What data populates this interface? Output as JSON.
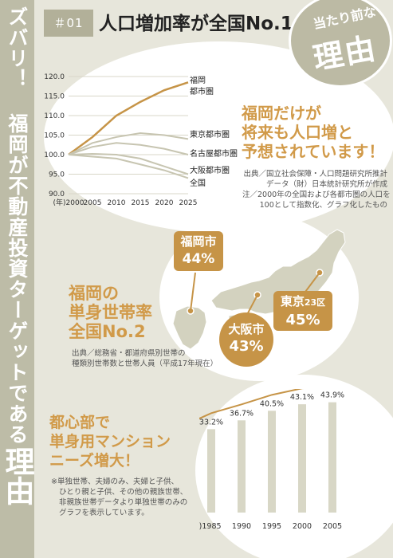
{
  "side": {
    "title": "ズバリ！ 福岡が不動産投資ターゲットである",
    "reason": "理由"
  },
  "header": {
    "number": "＃01",
    "title": "人口増加率が全国No.1",
    "badge_sub": "当たり前な",
    "badge_main": "理由"
  },
  "colors": {
    "accent": "#c69447",
    "accent_text": "#d19a49",
    "band": "#bdbca7",
    "grid": "#d9d7c8",
    "bar": "#d8d7c6",
    "background": "#e7e6db"
  },
  "section1": {
    "headline": [
      "福岡だけが",
      "将来も人口増と",
      "予想されています！"
    ],
    "source": [
      "出典／国立社会保障・人口問題研究所推計",
      "データ（財）日本統計研究所が作成",
      "注／2000年の全国および各都市圏の人口を",
      "100として指数化、グラフ化したもの"
    ]
  },
  "section2": {
    "headline": [
      "福岡の",
      "単身世帯率",
      "全国No.2"
    ],
    "source": [
      "出典／総務省・都道府県別世帯の",
      "種類別世帯数と世帯人員（平成17年現在）"
    ],
    "tags": {
      "fukuoka_city": "福岡市",
      "fukuoka_rate": "44%",
      "osaka_city": "大阪市",
      "osaka_rate": "43%",
      "tokyo_city": "東京",
      "tokyo_suffix": "23区",
      "tokyo_rate": "45%"
    }
  },
  "section3": {
    "headline": [
      "都心部で",
      "単身用マンション",
      "ニーズ増大！"
    ],
    "note": [
      "※単独世帯、夫婦のみ、夫婦と子供、",
      "ひとり親と子供、その他の親族世帯、",
      "非親族世帯データより単独世帯のみの",
      "グラフを表示しています。"
    ]
  },
  "chart_data": [
    {
      "type": "line",
      "x": [
        2000,
        2005,
        2010,
        2015,
        2020,
        2025
      ],
      "xlabel_prefix": "(年)",
      "ylim": [
        90,
        120
      ],
      "yticks": [
        "120.0",
        "115.0",
        "110.0",
        "105.0",
        "100.0",
        "95.0",
        "90.0"
      ],
      "series": [
        {
          "name": "福岡都市圏",
          "values": [
            100,
            104.5,
            110,
            113.5,
            116.5,
            118.5
          ]
        },
        {
          "name": "東京都市圏",
          "values": [
            100,
            103,
            104.5,
            105.5,
            105,
            104
          ]
        },
        {
          "name": "名古屋都市圏",
          "values": [
            100,
            102,
            103,
            102.5,
            101.5,
            100
          ]
        },
        {
          "name": "大阪都市圏",
          "values": [
            100,
            99.5,
            99,
            97.5,
            96,
            94
          ]
        },
        {
          "name": "全国",
          "values": [
            100,
            100.2,
            100,
            99,
            97,
            95
          ]
        }
      ]
    },
    {
      "type": "bar",
      "categories": [
        "1985",
        "1990",
        "1995",
        "2000",
        "2005"
      ],
      "xlabel_prefix": "(年)",
      "values": [
        33.2,
        36.7,
        40.5,
        43.1,
        43.9
      ],
      "labels": [
        "33.2%",
        "36.7%",
        "40.5%",
        "43.1%",
        "43.9%"
      ]
    }
  ]
}
